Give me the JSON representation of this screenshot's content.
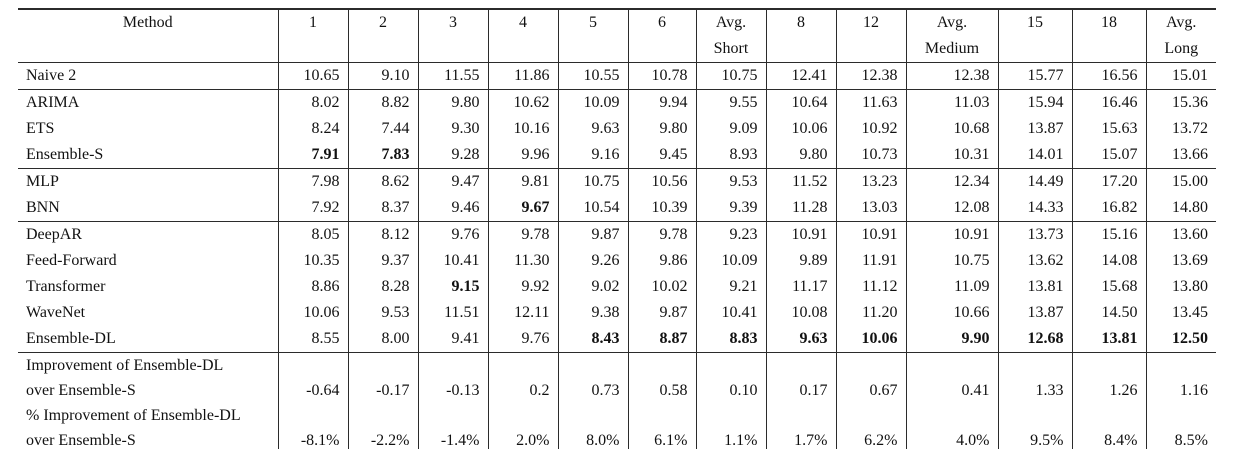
{
  "colors": {
    "background": "#ffffff",
    "text": "#111111",
    "rule": "#2b2b2b"
  },
  "table": {
    "header": {
      "columns": [
        {
          "line1": "Method",
          "line2": ""
        },
        {
          "line1": "1",
          "line2": ""
        },
        {
          "line1": "2",
          "line2": ""
        },
        {
          "line1": "3",
          "line2": ""
        },
        {
          "line1": "4",
          "line2": ""
        },
        {
          "line1": "5",
          "line2": ""
        },
        {
          "line1": "6",
          "line2": ""
        },
        {
          "line1": "Avg.",
          "line2": "Short"
        },
        {
          "line1": "8",
          "line2": ""
        },
        {
          "line1": "12",
          "line2": ""
        },
        {
          "line1": "Avg.",
          "line2": "Medium"
        },
        {
          "line1": "15",
          "line2": ""
        },
        {
          "line1": "18",
          "line2": ""
        },
        {
          "line1": "Avg.",
          "line2": "Long"
        }
      ]
    },
    "groups": [
      {
        "rows": [
          {
            "method": "Naive 2",
            "values": [
              "10.65",
              "9.10",
              "11.55",
              "11.86",
              "10.55",
              "10.78",
              "10.75",
              "12.41",
              "12.38",
              "12.38",
              "15.77",
              "16.56",
              "15.01"
            ],
            "bold": []
          }
        ]
      },
      {
        "rows": [
          {
            "method": "ARIMA",
            "values": [
              "8.02",
              "8.82",
              "9.80",
              "10.62",
              "10.09",
              "9.94",
              "9.55",
              "10.64",
              "11.63",
              "11.03",
              "15.94",
              "16.46",
              "15.36"
            ],
            "bold": []
          },
          {
            "method": "ETS",
            "values": [
              "8.24",
              "7.44",
              "9.30",
              "10.16",
              "9.63",
              "9.80",
              "9.09",
              "10.06",
              "10.92",
              "10.68",
              "13.87",
              "15.63",
              "13.72"
            ],
            "bold": []
          },
          {
            "method": "Ensemble-S",
            "values": [
              "7.91",
              "7.83",
              "9.28",
              "9.96",
              "9.16",
              "9.45",
              "8.93",
              "9.80",
              "10.73",
              "10.31",
              "14.01",
              "15.07",
              "13.66"
            ],
            "bold": [
              0,
              1
            ]
          }
        ]
      },
      {
        "rows": [
          {
            "method": "MLP",
            "values": [
              "7.98",
              "8.62",
              "9.47",
              "9.81",
              "10.75",
              "10.56",
              "9.53",
              "11.52",
              "13.23",
              "12.34",
              "14.49",
              "17.20",
              "15.00"
            ],
            "bold": []
          },
          {
            "method": "BNN",
            "values": [
              "7.92",
              "8.37",
              "9.46",
              "9.67",
              "10.54",
              "10.39",
              "9.39",
              "11.28",
              "13.03",
              "12.08",
              "14.33",
              "16.82",
              "14.80"
            ],
            "bold": [
              3
            ]
          }
        ]
      },
      {
        "rows": [
          {
            "method": "DeepAR",
            "values": [
              "8.05",
              "8.12",
              "9.76",
              "9.78",
              "9.87",
              "9.78",
              "9.23",
              "10.91",
              "10.91",
              "10.91",
              "13.73",
              "15.16",
              "13.60"
            ],
            "bold": []
          },
          {
            "method": "Feed-Forward",
            "values": [
              "10.35",
              "9.37",
              "10.41",
              "11.30",
              "9.26",
              "9.86",
              "10.09",
              "9.89",
              "11.91",
              "10.75",
              "13.62",
              "14.08",
              "13.69"
            ],
            "bold": []
          },
          {
            "method": "Transformer",
            "values": [
              "8.86",
              "8.28",
              "9.15",
              "9.92",
              "9.02",
              "10.02",
              "9.21",
              "11.17",
              "11.12",
              "11.09",
              "13.81",
              "15.68",
              "13.80"
            ],
            "bold": [
              2
            ]
          },
          {
            "method": "WaveNet",
            "values": [
              "10.06",
              "9.53",
              "11.51",
              "12.11",
              "9.38",
              "9.87",
              "10.41",
              "10.08",
              "11.20",
              "10.66",
              "13.87",
              "14.50",
              "13.45"
            ],
            "bold": []
          },
          {
            "method": "Ensemble-DL",
            "values": [
              "8.55",
              "8.00",
              "9.41",
              "9.76",
              "8.43",
              "8.87",
              "8.83",
              "9.63",
              "10.06",
              "9.90",
              "12.68",
              "13.81",
              "12.50"
            ],
            "bold": [
              4,
              5,
              6,
              7,
              8,
              9,
              10,
              11,
              12
            ]
          }
        ]
      },
      {
        "compact": true,
        "rows": [
          {
            "method": "Improvement of Ensemble-DL",
            "values": [
              "",
              "",
              "",
              "",
              "",
              "",
              "",
              "",
              "",
              "",
              "",
              "",
              ""
            ],
            "bold": []
          },
          {
            "method": "over Ensemble-S",
            "values": [
              "-0.64",
              "-0.17",
              "-0.13",
              "0.2",
              "0.73",
              "0.58",
              "0.10",
              "0.17",
              "0.67",
              "0.41",
              "1.33",
              "1.26",
              "1.16"
            ],
            "bold": []
          },
          {
            "method": "% Improvement of Ensemble-DL",
            "values": [
              "",
              "",
              "",
              "",
              "",
              "",
              "",
              "",
              "",
              "",
              "",
              "",
              ""
            ],
            "bold": []
          },
          {
            "method": "over Ensemble-S",
            "values": [
              "-8.1%",
              "-2.2%",
              "-1.4%",
              "2.0%",
              "8.0%",
              "6.1%",
              "1.1%",
              "1.7%",
              "6.2%",
              "4.0%",
              "9.5%",
              "8.4%",
              "8.5%"
            ],
            "bold": []
          }
        ]
      }
    ]
  }
}
